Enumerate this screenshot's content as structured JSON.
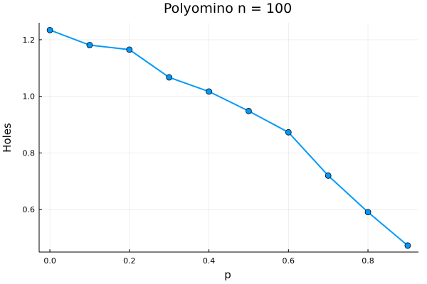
{
  "chart_data": {
    "type": "line",
    "title": "Polyomino n = 100",
    "xlabel": "p",
    "ylabel": "Holes",
    "xlim": [
      -0.027,
      0.927
    ],
    "ylim": [
      0.45,
      1.26
    ],
    "xticks": [
      0.0,
      0.2,
      0.4,
      0.6,
      0.8
    ],
    "xtick_labels": [
      "0.0",
      "0.2",
      "0.4",
      "0.6",
      "0.8"
    ],
    "yticks": [
      0.6,
      0.8,
      1.0,
      1.2
    ],
    "ytick_labels": [
      "0.6",
      "0.8",
      "1.0",
      "1.2"
    ],
    "grid": true,
    "legend": "none",
    "series": [
      {
        "color": "#009AFA",
        "markers": true,
        "x": [
          0.0,
          0.1,
          0.2,
          0.3,
          0.4,
          0.5,
          0.6,
          0.7,
          0.8,
          0.9
        ],
        "y": [
          1.234,
          1.181,
          1.165,
          1.067,
          1.017,
          0.948,
          0.873,
          0.72,
          0.591,
          0.473
        ]
      }
    ]
  }
}
